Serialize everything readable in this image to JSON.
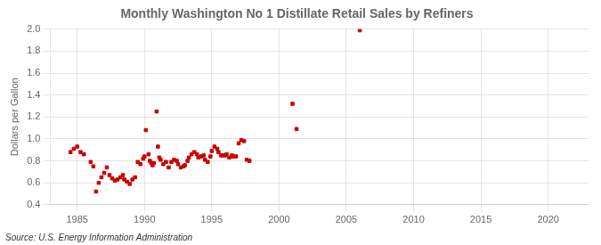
{
  "chart_data": {
    "type": "scatter",
    "title": "Monthly Washington No 1 Distillate Retail Sales by Refiners",
    "ylabel": "Dollars per Gallon",
    "annotations": [
      "Source: U.S. Energy Information Administration"
    ],
    "x": [
      1984.5,
      1984.75,
      1985.0,
      1985.25,
      1985.5,
      1986.0,
      1986.2,
      1986.4,
      1986.6,
      1986.8,
      1987.0,
      1987.2,
      1987.4,
      1987.6,
      1987.8,
      1988.0,
      1988.2,
      1988.4,
      1988.5,
      1988.7,
      1988.9,
      1989.1,
      1989.3,
      1989.5,
      1989.7,
      1989.9,
      1990.0,
      1990.1,
      1990.3,
      1990.4,
      1990.5,
      1990.6,
      1990.7,
      1990.9,
      1991.0,
      1991.1,
      1991.2,
      1991.4,
      1991.6,
      1991.8,
      1992.0,
      1992.2,
      1992.4,
      1992.5,
      1992.7,
      1992.9,
      1993.0,
      1993.2,
      1993.3,
      1993.5,
      1993.7,
      1993.9,
      1994.0,
      1994.2,
      1994.4,
      1994.5,
      1994.7,
      1994.9,
      1995.0,
      1995.2,
      1995.4,
      1995.5,
      1995.7,
      1995.8,
      1996.0,
      1996.1,
      1996.3,
      1996.5,
      1996.6,
      1996.8,
      1997.0,
      1997.2,
      1997.4,
      1997.6,
      1997.8,
      2001.0,
      2001.3,
      2006.0
    ],
    "values": [
      0.88,
      0.91,
      0.93,
      0.88,
      0.86,
      0.79,
      0.75,
      0.52,
      0.6,
      0.65,
      0.69,
      0.74,
      0.67,
      0.64,
      0.62,
      0.63,
      0.65,
      0.67,
      0.63,
      0.61,
      0.59,
      0.63,
      0.65,
      0.79,
      0.77,
      0.82,
      0.84,
      1.08,
      0.86,
      0.8,
      0.78,
      0.76,
      0.78,
      1.25,
      0.93,
      0.83,
      0.81,
      0.77,
      0.79,
      0.74,
      0.79,
      0.81,
      0.8,
      0.77,
      0.74,
      0.75,
      0.76,
      0.8,
      0.83,
      0.86,
      0.88,
      0.86,
      0.83,
      0.84,
      0.85,
      0.81,
      0.79,
      0.84,
      0.89,
      0.93,
      0.91,
      0.88,
      0.85,
      0.85,
      0.85,
      0.86,
      0.83,
      0.85,
      0.84,
      0.84,
      0.96,
      0.99,
      0.98,
      0.81,
      0.8,
      1.32,
      1.09,
      1.99
    ],
    "color": "#cc0000",
    "marker": "square",
    "xlim": [
      1983.0,
      2023.0
    ],
    "ylim": [
      0.4,
      2.0
    ],
    "xticks": [
      1985,
      1990,
      1995,
      2000,
      2005,
      2010,
      2015,
      2020
    ],
    "yticks": [
      0.4,
      0.6,
      0.8,
      {
        "value": 1.0,
        "label": "1.0"
      },
      1.2,
      1.4,
      1.6,
      1.8,
      {
        "value": 2.0,
        "label": "2.0"
      }
    ],
    "grid": true
  }
}
